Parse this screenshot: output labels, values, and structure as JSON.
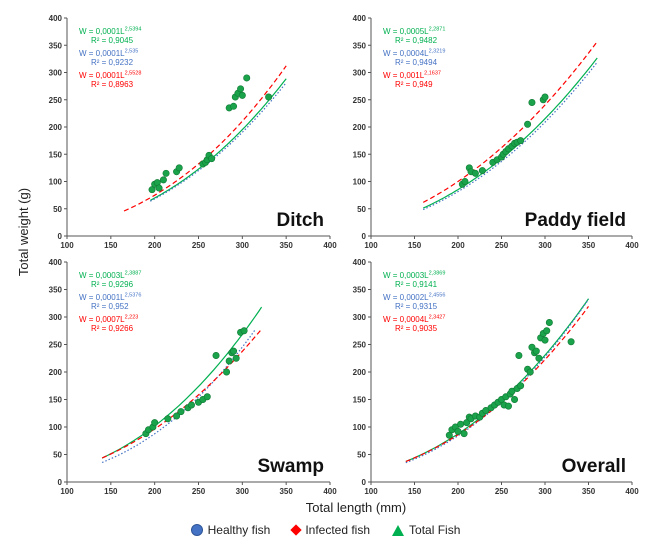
{
  "figure": {
    "ylabel": "Total weight (g)",
    "xlabel": "Total length (mm)"
  },
  "legend": [
    {
      "label": "Healthy fish",
      "symbol": "circle",
      "color": "#4472c4"
    },
    {
      "label": "Infected fish",
      "symbol": "diamond",
      "color": "#ff0000"
    },
    {
      "label": "Total Fish",
      "symbol": "triangle",
      "color": "#00b050"
    }
  ],
  "chart_data": [
    {
      "type": "scatter",
      "title": "Ditch",
      "xlim": [
        100,
        400
      ],
      "ylim": [
        0,
        400
      ],
      "xticks": [
        100,
        150,
        200,
        250,
        300,
        350,
        400
      ],
      "yticks": [
        0,
        50,
        100,
        150,
        200,
        250,
        300,
        350,
        400
      ],
      "equations": [
        {
          "series": "Total Fish",
          "color": "#00b050",
          "base": "W = 0,0001L",
          "exp": "2,5394",
          "r2": "R² = 0,9045"
        },
        {
          "series": "Healthy fish",
          "color": "#4472c4",
          "base": "W = 0,0001L",
          "exp": "2,535",
          "r2": "R² = 0,9232"
        },
        {
          "series": "Infected fish",
          "color": "#ff0000",
          "base": "W = 0,0001L",
          "exp": "2,5528",
          "r2": "R² = 0,8963"
        }
      ],
      "fits": [
        {
          "color": "#00b050",
          "a": 0.0001,
          "b": 2.5394,
          "x": [
            195,
            350
          ],
          "dash": "solid"
        },
        {
          "color": "#4472c4",
          "a": 0.0001,
          "b": 2.535,
          "x": [
            195,
            350
          ],
          "dash": "dot"
        },
        {
          "color": "#ff0000",
          "a": 0.0001,
          "b": 2.5528,
          "x": [
            165,
            350
          ],
          "dash": "dash"
        }
      ],
      "points": [
        {
          "x": 197,
          "y": 85
        },
        {
          "x": 200,
          "y": 95
        },
        {
          "x": 203,
          "y": 98
        },
        {
          "x": 205,
          "y": 88
        },
        {
          "x": 210,
          "y": 103
        },
        {
          "x": 213,
          "y": 115
        },
        {
          "x": 225,
          "y": 118
        },
        {
          "x": 228,
          "y": 125
        },
        {
          "x": 255,
          "y": 132
        },
        {
          "x": 258,
          "y": 135
        },
        {
          "x": 260,
          "y": 140
        },
        {
          "x": 262,
          "y": 148
        },
        {
          "x": 265,
          "y": 142
        },
        {
          "x": 285,
          "y": 235
        },
        {
          "x": 290,
          "y": 238
        },
        {
          "x": 292,
          "y": 255
        },
        {
          "x": 295,
          "y": 262
        },
        {
          "x": 298,
          "y": 270
        },
        {
          "x": 300,
          "y": 258
        },
        {
          "x": 305,
          "y": 290
        },
        {
          "x": 330,
          "y": 255
        }
      ]
    },
    {
      "type": "scatter",
      "title": "Paddy field",
      "xlim": [
        100,
        400
      ],
      "ylim": [
        0,
        400
      ],
      "xticks": [
        100,
        150,
        200,
        250,
        300,
        350,
        400
      ],
      "yticks": [
        0,
        50,
        100,
        150,
        200,
        250,
        300,
        350,
        400
      ],
      "equations": [
        {
          "series": "Total Fish",
          "color": "#00b050",
          "base": "W = 0,0005L",
          "exp": "2,2871",
          "r2": "R² = 0,9482"
        },
        {
          "series": "Healthy fish",
          "color": "#4472c4",
          "base": "W = 0,0004L",
          "exp": "2,3219",
          "r2": "R² = 0,9494"
        },
        {
          "series": "Infected fish",
          "color": "#ff0000",
          "base": "W = 0,001L",
          "exp": "2,1637",
          "r2": "R² = 0,949"
        }
      ],
      "fits": [
        {
          "color": "#00b050",
          "a": 0.000465,
          "b": 2.2871,
          "x": [
            160,
            360
          ],
          "dash": "solid"
        },
        {
          "color": "#4472c4",
          "a": 0.00037,
          "b": 2.3219,
          "x": [
            160,
            360
          ],
          "dash": "dot"
        },
        {
          "color": "#ff0000",
          "a": 0.00105,
          "b": 2.1637,
          "x": [
            160,
            360
          ],
          "dash": "dash"
        }
      ],
      "points": [
        {
          "x": 205,
          "y": 95
        },
        {
          "x": 208,
          "y": 100
        },
        {
          "x": 213,
          "y": 125
        },
        {
          "x": 215,
          "y": 118
        },
        {
          "x": 220,
          "y": 115
        },
        {
          "x": 228,
          "y": 120
        },
        {
          "x": 240,
          "y": 135
        },
        {
          "x": 245,
          "y": 140
        },
        {
          "x": 250,
          "y": 145
        },
        {
          "x": 252,
          "y": 150
        },
        {
          "x": 255,
          "y": 155
        },
        {
          "x": 258,
          "y": 160
        },
        {
          "x": 262,
          "y": 165
        },
        {
          "x": 265,
          "y": 170
        },
        {
          "x": 268,
          "y": 172
        },
        {
          "x": 272,
          "y": 175
        },
        {
          "x": 280,
          "y": 205
        },
        {
          "x": 285,
          "y": 245
        },
        {
          "x": 298,
          "y": 250
        },
        {
          "x": 300,
          "y": 255
        }
      ]
    },
    {
      "type": "scatter",
      "title": "Swamp",
      "xlim": [
        100,
        400
      ],
      "ylim": [
        0,
        400
      ],
      "xticks": [
        100,
        150,
        200,
        250,
        300,
        350,
        400
      ],
      "yticks": [
        0,
        50,
        100,
        150,
        200,
        250,
        300,
        350,
        400
      ],
      "equations": [
        {
          "series": "Total Fish",
          "color": "#00b050",
          "base": "W = 0,0003L",
          "exp": "2,3887",
          "r2": "R² = 0,9296"
        },
        {
          "series": "Healthy fish",
          "color": "#4472c4",
          "base": "W = 0,0001L",
          "exp": "2,5376",
          "r2": "R² = 0,952"
        },
        {
          "series": "Infected fish",
          "color": "#ff0000",
          "base": "W = 0,0007L",
          "exp": "2,223",
          "r2": "R² = 0,9266"
        }
      ],
      "fits": [
        {
          "color": "#00b050",
          "a": 0.000325,
          "b": 2.3887,
          "x": [
            140,
            322
          ],
          "dash": "solid"
        },
        {
          "color": "#4472c4",
          "a": 0.000127,
          "b": 2.5376,
          "x": [
            140,
            315
          ],
          "dash": "dot"
        },
        {
          "color": "#ff0000",
          "a": 0.00074,
          "b": 2.223,
          "x": [
            140,
            322
          ],
          "dash": "dash"
        }
      ],
      "points": [
        {
          "x": 190,
          "y": 88
        },
        {
          "x": 193,
          "y": 95
        },
        {
          "x": 198,
          "y": 100
        },
        {
          "x": 200,
          "y": 108
        },
        {
          "x": 215,
          "y": 115
        },
        {
          "x": 225,
          "y": 120
        },
        {
          "x": 230,
          "y": 128
        },
        {
          "x": 238,
          "y": 135
        },
        {
          "x": 242,
          "y": 140
        },
        {
          "x": 250,
          "y": 145
        },
        {
          "x": 255,
          "y": 150
        },
        {
          "x": 260,
          "y": 155
        },
        {
          "x": 270,
          "y": 230
        },
        {
          "x": 282,
          "y": 200
        },
        {
          "x": 285,
          "y": 220
        },
        {
          "x": 288,
          "y": 235
        },
        {
          "x": 290,
          "y": 238
        },
        {
          "x": 293,
          "y": 225
        },
        {
          "x": 298,
          "y": 272
        },
        {
          "x": 302,
          "y": 275
        }
      ]
    },
    {
      "type": "scatter",
      "title": "Overall",
      "xlim": [
        100,
        400
      ],
      "ylim": [
        0,
        400
      ],
      "xticks": [
        100,
        150,
        200,
        250,
        300,
        350,
        400
      ],
      "yticks": [
        0,
        50,
        100,
        150,
        200,
        250,
        300,
        350,
        400
      ],
      "equations": [
        {
          "series": "Total Fish",
          "color": "#00b050",
          "base": "W = 0,0003L",
          "exp": "2,3869",
          "r2": "R² = 0,9141"
        },
        {
          "series": "Healthy fish",
          "color": "#4472c4",
          "base": "W = 0,0002L",
          "exp": "2,4556",
          "r2": "R² = 0,9315"
        },
        {
          "series": "Infected fish",
          "color": "#ff0000",
          "base": "W = 0,0004L",
          "exp": "2,3427",
          "r2": "R² = 0,9035"
        }
      ],
      "fits": [
        {
          "color": "#00b050",
          "a": 0.000282,
          "b": 2.3869,
          "x": [
            140,
            350
          ],
          "dash": "solid"
        },
        {
          "color": "#4472c4",
          "a": 0.000188,
          "b": 2.4556,
          "x": [
            140,
            350
          ],
          "dash": "dot"
        },
        {
          "color": "#ff0000",
          "a": 0.00035,
          "b": 2.3427,
          "x": [
            140,
            350
          ],
          "dash": "dash"
        }
      ],
      "points": [
        {
          "x": 190,
          "y": 85
        },
        {
          "x": 193,
          "y": 95
        },
        {
          "x": 197,
          "y": 100
        },
        {
          "x": 200,
          "y": 92
        },
        {
          "x": 203,
          "y": 105
        },
        {
          "x": 207,
          "y": 88
        },
        {
          "x": 210,
          "y": 108
        },
        {
          "x": 213,
          "y": 118
        },
        {
          "x": 215,
          "y": 115
        },
        {
          "x": 220,
          "y": 120
        },
        {
          "x": 225,
          "y": 118
        },
        {
          "x": 228,
          "y": 125
        },
        {
          "x": 232,
          "y": 130
        },
        {
          "x": 238,
          "y": 135
        },
        {
          "x": 242,
          "y": 140
        },
        {
          "x": 246,
          "y": 145
        },
        {
          "x": 250,
          "y": 150
        },
        {
          "x": 253,
          "y": 140
        },
        {
          "x": 255,
          "y": 155
        },
        {
          "x": 258,
          "y": 138
        },
        {
          "x": 260,
          "y": 160
        },
        {
          "x": 262,
          "y": 165
        },
        {
          "x": 265,
          "y": 150
        },
        {
          "x": 268,
          "y": 170
        },
        {
          "x": 270,
          "y": 230
        },
        {
          "x": 272,
          "y": 175
        },
        {
          "x": 280,
          "y": 205
        },
        {
          "x": 283,
          "y": 200
        },
        {
          "x": 285,
          "y": 245
        },
        {
          "x": 288,
          "y": 235
        },
        {
          "x": 290,
          "y": 238
        },
        {
          "x": 293,
          "y": 225
        },
        {
          "x": 295,
          "y": 262
        },
        {
          "x": 298,
          "y": 270
        },
        {
          "x": 300,
          "y": 258
        },
        {
          "x": 302,
          "y": 275
        },
        {
          "x": 305,
          "y": 290
        },
        {
          "x": 330,
          "y": 255
        }
      ]
    }
  ]
}
